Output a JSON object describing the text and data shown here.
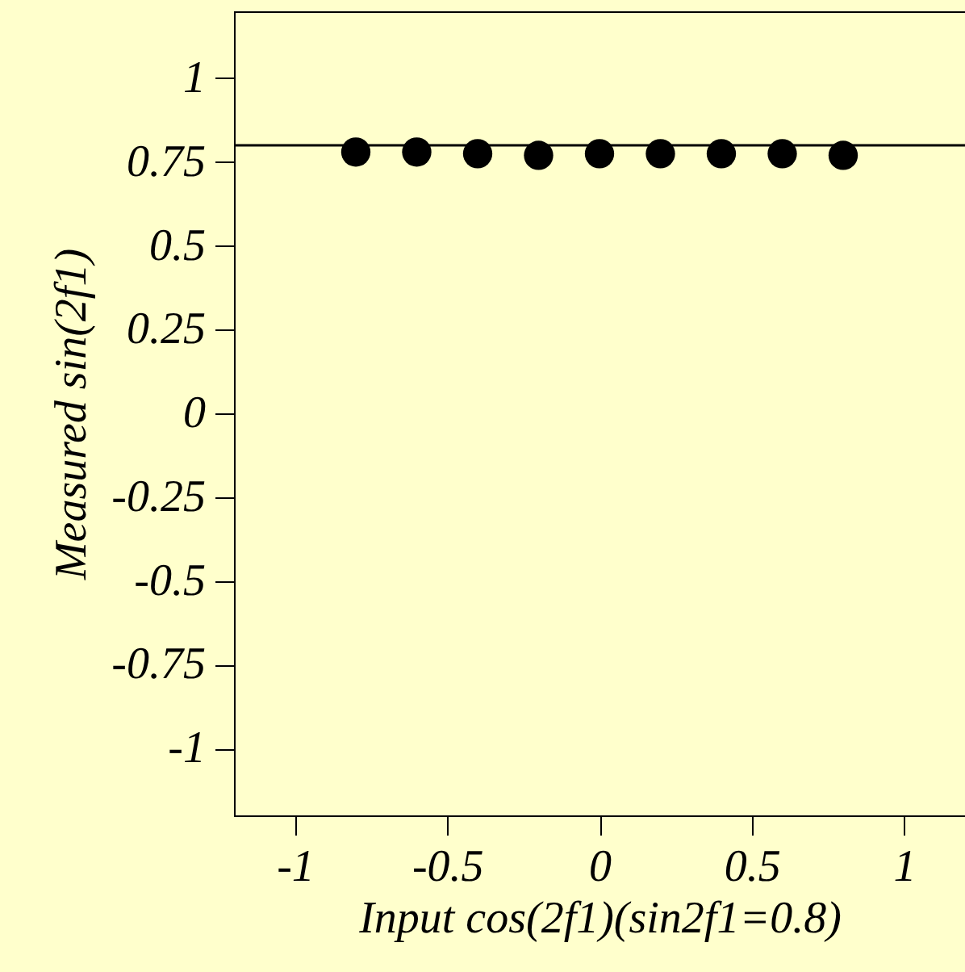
{
  "chart_data": {
    "type": "scatter",
    "xlabel": "Input cos(2f1)(sin2f1=0.8)",
    "ylabel": "Measured sin(2f1)",
    "x": [
      -0.8,
      -0.6,
      -0.4,
      -0.2,
      0,
      0.2,
      0.4,
      0.6,
      0.8
    ],
    "series": [
      {
        "color": "#000000",
        "values": [
          0.78,
          0.78,
          0.775,
          0.77,
          0.775,
          0.775,
          0.775,
          0.775,
          0.77
        ]
      }
    ],
    "xlim": [
      -1.2,
      1.2
    ],
    "xticks": [
      -1,
      -0.5,
      0,
      0.5,
      1
    ],
    "ylim": [
      -1.2,
      1.2
    ],
    "yticks": [
      -1,
      -0.75,
      -0.5,
      -0.25,
      0,
      0.25,
      0.5,
      0.75,
      1
    ],
    "ref_lines": [
      {
        "axis": "y",
        "value": 0.8,
        "color": "#000000"
      }
    ],
    "marker": "circle",
    "grid": false
  }
}
